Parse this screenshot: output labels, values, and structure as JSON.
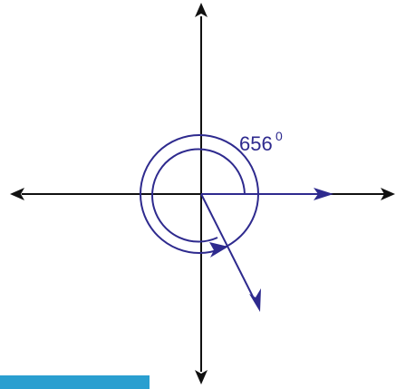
{
  "diagram": {
    "angle_value": "656",
    "degree_symbol": "0"
  },
  "colors": {
    "axis": "#111111",
    "angle": "#2e2a8e",
    "accent_bar": "#2a9fd0"
  }
}
